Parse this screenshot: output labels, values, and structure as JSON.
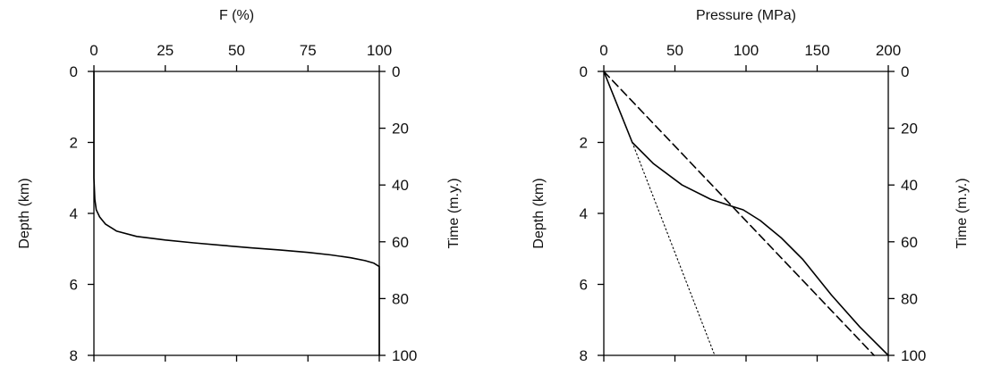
{
  "chart_data": [
    {
      "type": "line",
      "title": "",
      "top_axis": {
        "label": "F (%)",
        "range": [
          0,
          100
        ],
        "ticks": [
          "0",
          "25",
          "50",
          "75",
          "100"
        ]
      },
      "left_axis": {
        "label": "Depth (km)",
        "range": [
          0,
          8
        ],
        "inverted": true,
        "ticks": [
          "0",
          "2",
          "4",
          "6",
          "8"
        ]
      },
      "right_axis": {
        "label": "Time (m.y.)",
        "range": [
          0,
          100
        ],
        "inverted": true,
        "ticks": [
          "0",
          "20",
          "40",
          "60",
          "80",
          "100"
        ]
      },
      "grid": false,
      "series": [
        {
          "style": "solid",
          "x": [
            0,
            0,
            0.3,
            0.8,
            2,
            4,
            8,
            15,
            25,
            35,
            45,
            55,
            65,
            75,
            83,
            90,
            95,
            98,
            100,
            100,
            100
          ],
          "y": [
            0,
            3.0,
            3.6,
            3.9,
            4.1,
            4.3,
            4.5,
            4.65,
            4.75,
            4.83,
            4.9,
            4.97,
            5.03,
            5.1,
            5.17,
            5.25,
            5.33,
            5.4,
            5.5,
            6.5,
            8.0
          ]
        }
      ]
    },
    {
      "type": "line",
      "title": "",
      "top_axis": {
        "label": "Pressure (MPa)",
        "range": [
          0,
          200
        ],
        "ticks": [
          "0",
          "50",
          "100",
          "150",
          "200"
        ]
      },
      "left_axis": {
        "label": "Depth (km)",
        "range": [
          0,
          8
        ],
        "inverted": true,
        "ticks": [
          "0",
          "2",
          "4",
          "6",
          "8"
        ]
      },
      "right_axis": {
        "label": "Time (m.y.)",
        "range": [
          0,
          100
        ],
        "inverted": true,
        "ticks": [
          "0",
          "20",
          "40",
          "60",
          "80",
          "100"
        ]
      },
      "grid": false,
      "series": [
        {
          "style": "solid",
          "x": [
            0,
            20,
            35,
            55,
            75,
            90,
            98,
            110,
            125,
            140,
            160,
            180,
            200
          ],
          "y": [
            0,
            2.0,
            2.6,
            3.2,
            3.6,
            3.8,
            3.9,
            4.2,
            4.7,
            5.3,
            6.3,
            7.2,
            8.0
          ]
        },
        {
          "style": "dashed",
          "x": [
            0,
            190
          ],
          "y": [
            0,
            8.0
          ]
        },
        {
          "style": "dotted",
          "x": [
            20,
            78
          ],
          "y": [
            2.0,
            8.0
          ]
        }
      ]
    }
  ]
}
